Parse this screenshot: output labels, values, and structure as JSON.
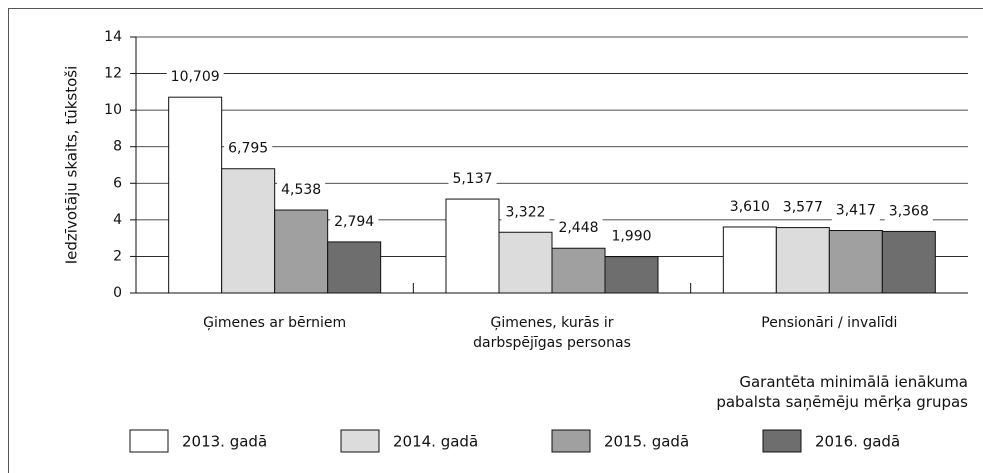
{
  "chart_data": {
    "type": "bar",
    "y_label": "Iedzīvotāju skaits, tūkstoši",
    "x_label": "Garantēta minimālā ienākuma\npabalsta saņēmēju mērķa grupas",
    "categories": [
      "Ģimenes ar bērniem",
      "Ģimenes, kurās ir\ndarbspējīgas personas",
      "Pensionāri / invalīdi"
    ],
    "series": [
      {
        "name": "2013. gadā",
        "color": "#ffffff",
        "values": [
          10.709,
          5.137,
          3.61
        ],
        "value_labels": [
          "10,709",
          "5,137",
          "3,610"
        ]
      },
      {
        "name": "2014. gadā",
        "color": "#dcdcdc",
        "values": [
          6.795,
          3.322,
          3.577
        ],
        "value_labels": [
          "6,795",
          "3,322",
          "3,577"
        ]
      },
      {
        "name": "2015. gadā",
        "color": "#a0a0a0",
        "values": [
          4.538,
          2.448,
          3.417
        ],
        "value_labels": [
          "4,538",
          "2,448",
          "3,417"
        ]
      },
      {
        "name": "2016. gadā",
        "color": "#6e6e6e",
        "values": [
          2.794,
          1.99,
          3.368
        ],
        "value_labels": [
          "2,794",
          "1,990",
          "3,368"
        ]
      }
    ],
    "ylim": [
      0,
      14
    ],
    "yticks": [
      0,
      2,
      4,
      6,
      8,
      10,
      12,
      14
    ],
    "grid": true,
    "legend": "bottom"
  }
}
